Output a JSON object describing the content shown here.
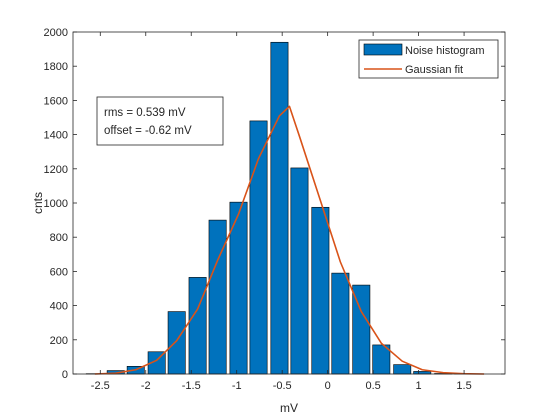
{
  "chart_data": {
    "type": "bar",
    "title": "",
    "xlabel": "mV",
    "ylabel": "cnts",
    "xlim": [
      -2.8,
      1.95
    ],
    "ylim": [
      0,
      2000
    ],
    "xticks": [
      -2.5,
      -2,
      -1.5,
      -1,
      -0.5,
      0,
      0.5,
      1,
      1.5
    ],
    "xtick_labels": [
      "-2.5",
      "-2",
      "-1.5",
      "-1",
      "-0.5",
      "0",
      "0.5",
      "1",
      "1.5"
    ],
    "yticks": [
      0,
      200,
      400,
      600,
      800,
      1000,
      1200,
      1400,
      1600,
      1800,
      2000
    ],
    "ytick_labels": [
      "0",
      "200",
      "400",
      "600",
      "800",
      "1000",
      "1200",
      "1400",
      "1600",
      "1800",
      "2000"
    ],
    "grid": false,
    "legend_position": "top-right",
    "bar_width": 0.19,
    "series": [
      {
        "name": "Noise histogram",
        "type": "bar",
        "color": "#0072BD",
        "x": [
          -2.56,
          -2.33,
          -2.11,
          -1.88,
          -1.66,
          -1.43,
          -1.21,
          -0.98,
          -0.76,
          -0.53,
          -0.46,
          -0.31,
          -0.08,
          0.14,
          0.37,
          0.59,
          0.82,
          1.04,
          1.27,
          1.49,
          1.72
        ],
        "values": [
          2,
          20,
          45,
          130,
          365,
          565,
          900,
          1005,
          1480,
          1940,
          0,
          1205,
          975,
          590,
          520,
          170,
          55,
          15,
          3,
          1,
          0
        ]
      },
      {
        "name": "Gaussian fit",
        "type": "line",
        "color": "#D95319",
        "x": [
          -2.56,
          -2.33,
          -2.11,
          -1.88,
          -1.66,
          -1.43,
          -1.21,
          -0.98,
          -0.76,
          -0.53,
          -0.42,
          -0.31,
          -0.08,
          0.14,
          0.37,
          0.59,
          0.82,
          1.04,
          1.27,
          1.49,
          1.72
        ],
        "values": [
          0,
          5,
          25,
          80,
          195,
          380,
          665,
          935,
          1260,
          1510,
          1565,
          1390,
          1015,
          655,
          365,
          180,
          75,
          25,
          8,
          2,
          0
        ]
      }
    ],
    "annotation": {
      "lines": [
        "rms = 0.539 mV",
        "offset = -0.62 mV"
      ]
    }
  }
}
